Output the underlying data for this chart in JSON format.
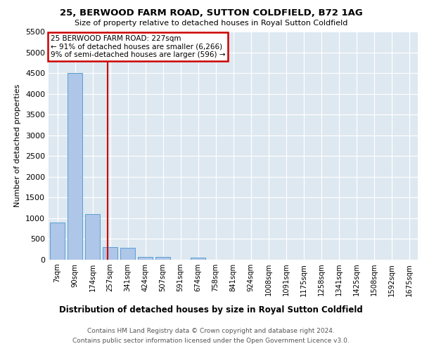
{
  "title": "25, BERWOOD FARM ROAD, SUTTON COLDFIELD, B72 1AG",
  "subtitle": "Size of property relative to detached houses in Royal Sutton Coldfield",
  "xlabel": "Distribution of detached houses by size in Royal Sutton Coldfield",
  "ylabel": "Number of detached properties",
  "footnote1": "Contains HM Land Registry data © Crown copyright and database right 2024.",
  "footnote2": "Contains public sector information licensed under the Open Government Licence v3.0.",
  "bar_labels": [
    "7sqm",
    "90sqm",
    "174sqm",
    "257sqm",
    "341sqm",
    "424sqm",
    "507sqm",
    "591sqm",
    "674sqm",
    "758sqm",
    "841sqm",
    "924sqm",
    "1008sqm",
    "1091sqm",
    "1175sqm",
    "1258sqm",
    "1341sqm",
    "1425sqm",
    "1508sqm",
    "1592sqm",
    "1675sqm"
  ],
  "bar_values": [
    900,
    4500,
    1100,
    300,
    290,
    75,
    70,
    0,
    50,
    0,
    0,
    0,
    0,
    0,
    0,
    0,
    0,
    0,
    0,
    0,
    0
  ],
  "bar_color": "#aec6e8",
  "bar_edge_color": "#5a9fd4",
  "vline_x": 2.85,
  "vline_color": "#cc0000",
  "ylim": [
    0,
    5500
  ],
  "yticks": [
    0,
    500,
    1000,
    1500,
    2000,
    2500,
    3000,
    3500,
    4000,
    4500,
    5000,
    5500
  ],
  "annotation_text": "25 BERWOOD FARM ROAD: 227sqm\n← 91% of detached houses are smaller (6,266)\n9% of semi-detached houses are larger (596) →",
  "annotation_box_color": "#cc0000",
  "plot_bg_color": "#dde8f0"
}
